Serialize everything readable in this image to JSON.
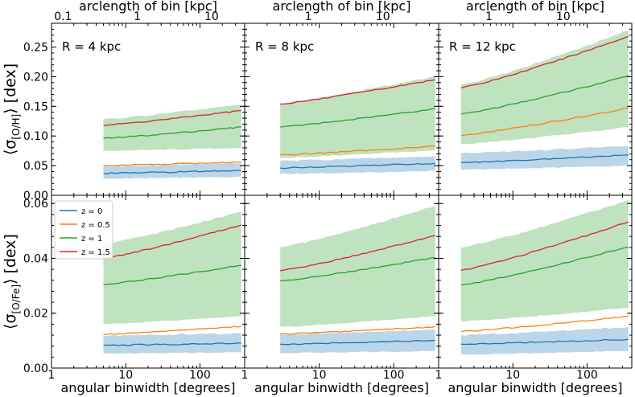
{
  "chart_data": {
    "type": "line",
    "description_axes": {
      "xlabel": "angular binwidth [degrees]",
      "x_top_label": "arclength of bin [kpc]",
      "x_scale": "log",
      "xlim": [
        1,
        400
      ],
      "x_ticks": [
        "1",
        "10",
        "100"
      ],
      "top_ticks": [
        [
          "0.1",
          "1",
          "10"
        ],
        [
          "1",
          "10"
        ],
        [
          "1",
          "10"
        ]
      ],
      "rows": [
        {
          "ylabel_main": "⟨σ",
          "ylabel_sub": "[O/H]",
          "ylabel_tail": "⟩ [dex]",
          "ylim": [
            0,
            0.29
          ],
          "yticks": [
            "0.00",
            "0.05",
            "0.10",
            "0.15",
            "0.20",
            "0.25"
          ]
        },
        {
          "ylabel_main": "⟨σ",
          "ylabel_sub": "[O/Fe]",
          "ylabel_tail": "⟩ [dex]",
          "ylim": [
            0,
            0.063
          ],
          "yticks": [
            "0.00",
            "0.02",
            "0.04",
            "0.06"
          ]
        }
      ]
    },
    "legend": {
      "location": "upper-left of lower-left panel",
      "entries": [
        {
          "label": "z = 0",
          "color": "#1f77b4"
        },
        {
          "label": "z = 0.5",
          "color": "#ff7f0e"
        },
        {
          "label": "z = 1",
          "color": "#2ca02c"
        },
        {
          "label": "z = 1.5",
          "color": "#d62728"
        }
      ]
    },
    "columns": [
      {
        "annotation": "R = 4 kpc",
        "x_start": 5
      },
      {
        "annotation": "R = 8 kpc",
        "x_start": 3
      },
      {
        "annotation": "R = 12 kpc",
        "x_start": 2
      }
    ],
    "x_end": 360,
    "panels": [
      {
        "row": 0,
        "col": 0,
        "series": [
          {
            "name": "z = 0",
            "start": 0.037,
            "end": 0.042,
            "band": [
              [
                0.028,
                0.031
              ],
              [
                0.049,
                0.054
              ]
            ]
          },
          {
            "name": "z = 0.5",
            "start": 0.05,
            "end": 0.056
          },
          {
            "name": "z = 1",
            "start": 0.096,
            "end": 0.115,
            "band": [
              [
                0.075,
                0.08
              ],
              [
                0.128,
                0.153
              ]
            ]
          },
          {
            "name": "z = 1.5",
            "start": 0.118,
            "end": 0.143
          }
        ]
      },
      {
        "row": 0,
        "col": 1,
        "series": [
          {
            "name": "z = 0",
            "start": 0.046,
            "end": 0.054,
            "band": [
              [
                0.036,
                0.041
              ],
              [
                0.058,
                0.066
              ]
            ]
          },
          {
            "name": "z = 0.5",
            "start": 0.068,
            "end": 0.083
          },
          {
            "name": "z = 1",
            "start": 0.115,
            "end": 0.146,
            "band": [
              [
                0.063,
                0.076
              ],
              [
                0.155,
                0.201
              ]
            ]
          },
          {
            "name": "z = 1.5",
            "start": 0.154,
            "end": 0.195
          }
        ]
      },
      {
        "row": 0,
        "col": 2,
        "series": [
          {
            "name": "z = 0",
            "start": 0.055,
            "end": 0.068,
            "band": [
              [
                0.043,
                0.05
              ],
              [
                0.071,
                0.083
              ]
            ]
          },
          {
            "name": "z = 0.5",
            "start": 0.101,
            "end": 0.147
          },
          {
            "name": "z = 1",
            "start": 0.137,
            "end": 0.201,
            "band": [
              [
                0.086,
                0.115
              ],
              [
                0.186,
                0.278
              ]
            ]
          },
          {
            "name": "z = 1.5",
            "start": 0.181,
            "end": 0.268
          }
        ]
      },
      {
        "row": 1,
        "col": 0,
        "series": [
          {
            "name": "z = 0",
            "start": 0.0083,
            "end": 0.0091,
            "band": [
              [
                0.0053,
                0.0057
              ],
              [
                0.0118,
                0.0127
              ]
            ]
          },
          {
            "name": "z = 0.5",
            "start": 0.0123,
            "end": 0.0152
          },
          {
            "name": "z = 1",
            "start": 0.0305,
            "end": 0.0375,
            "band": [
              [
                0.016,
                0.019
              ],
              [
                0.0452,
                0.0571
              ]
            ]
          },
          {
            "name": "z = 1.5",
            "start": 0.04,
            "end": 0.0522
          }
        ]
      },
      {
        "row": 1,
        "col": 1,
        "series": [
          {
            "name": "z = 0",
            "start": 0.0087,
            "end": 0.0101,
            "band": [
              [
                0.0055,
                0.0062
              ],
              [
                0.0122,
                0.014
              ]
            ]
          },
          {
            "name": "z = 0.5",
            "start": 0.0124,
            "end": 0.0151
          },
          {
            "name": "z = 1",
            "start": 0.0318,
            "end": 0.0403,
            "band": [
              [
                0.015,
                0.019
              ],
              [
                0.044,
                0.0592
              ]
            ]
          },
          {
            "name": "z = 1.5",
            "start": 0.0355,
            "end": 0.0483
          }
        ]
      },
      {
        "row": 1,
        "col": 2,
        "series": [
          {
            "name": "z = 0",
            "start": 0.0087,
            "end": 0.0105,
            "band": [
              [
                0.005,
                0.0062
              ],
              [
                0.012,
                0.015
              ]
            ]
          },
          {
            "name": "z = 0.5",
            "start": 0.0133,
            "end": 0.0189
          },
          {
            "name": "z = 1",
            "start": 0.0303,
            "end": 0.0442,
            "band": [
              [
                0.017,
                0.022
              ],
              [
                0.044,
                0.0612
              ]
            ]
          },
          {
            "name": "z = 1.5",
            "start": 0.0356,
            "end": 0.0533
          }
        ]
      }
    ]
  }
}
